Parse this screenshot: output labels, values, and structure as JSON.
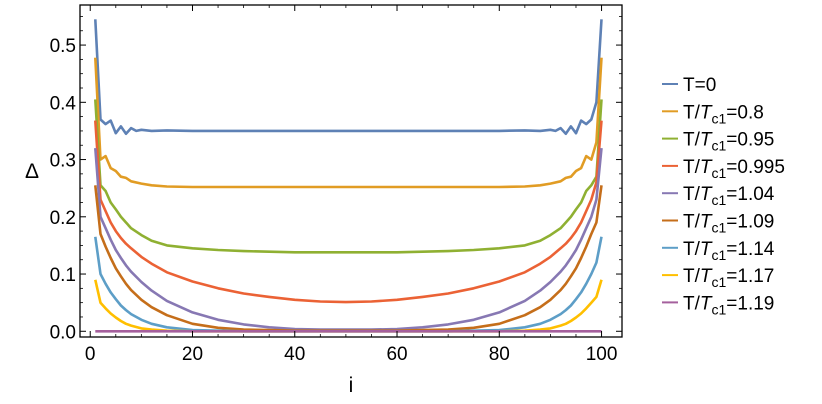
{
  "chart_data": {
    "type": "line",
    "xlabel": "i",
    "ylabel": "Δ",
    "xlim": [
      -2,
      104
    ],
    "ylim": [
      -0.01,
      0.57
    ],
    "x_ticks": [
      0,
      20,
      40,
      60,
      80,
      100
    ],
    "x_tick_labels": [
      "0",
      "20",
      "40",
      "60",
      "80",
      "100"
    ],
    "y_ticks": [
      0.0,
      0.1,
      0.2,
      0.3,
      0.4,
      0.5
    ],
    "y_tick_labels": [
      "0.0",
      "0.1",
      "0.2",
      "0.3",
      "0.4",
      "0.5"
    ],
    "grid": false,
    "legend_position": "right",
    "series": [
      {
        "name": "T=0",
        "legend": {
          "prefix": "T=0",
          "sym": "",
          "sub": "",
          "val": ""
        },
        "color": "#5e81b5",
        "x": [
          1,
          2,
          3,
          4,
          5,
          6,
          7,
          8,
          9,
          10,
          12,
          15,
          20,
          30,
          40,
          50,
          60,
          70,
          80,
          85,
          88,
          90,
          91,
          92,
          93,
          94,
          95,
          96,
          97,
          98,
          99,
          100
        ],
        "y": [
          0.545,
          0.37,
          0.362,
          0.368,
          0.346,
          0.358,
          0.345,
          0.355,
          0.35,
          0.352,
          0.35,
          0.351,
          0.35,
          0.35,
          0.35,
          0.35,
          0.35,
          0.35,
          0.35,
          0.351,
          0.35,
          0.352,
          0.35,
          0.355,
          0.345,
          0.358,
          0.346,
          0.368,
          0.362,
          0.37,
          0.4,
          0.545
        ]
      },
      {
        "name": "T/Tc1=0.8",
        "legend": {
          "prefix": "T/",
          "sym": "T",
          "sub": "c1",
          "val": "=0.8"
        },
        "color": "#e19c24",
        "x": [
          1,
          2,
          3,
          4,
          5,
          6,
          7,
          8,
          10,
          12,
          15,
          20,
          30,
          40,
          50,
          60,
          70,
          80,
          85,
          88,
          90,
          92,
          93,
          94,
          95,
          96,
          97,
          98,
          99,
          100
        ],
        "y": [
          0.478,
          0.3,
          0.306,
          0.285,
          0.28,
          0.27,
          0.268,
          0.262,
          0.258,
          0.255,
          0.253,
          0.252,
          0.252,
          0.252,
          0.252,
          0.252,
          0.252,
          0.252,
          0.253,
          0.255,
          0.258,
          0.262,
          0.268,
          0.27,
          0.28,
          0.285,
          0.306,
          0.3,
          0.33,
          0.478
        ]
      },
      {
        "name": "T/Tc1=0.95",
        "legend": {
          "prefix": "T/",
          "sym": "T",
          "sub": "c1",
          "val": "=0.95"
        },
        "color": "#8fb032",
        "x": [
          1,
          2,
          3,
          4,
          5,
          6,
          7,
          8,
          10,
          12,
          15,
          20,
          25,
          30,
          40,
          50,
          60,
          70,
          75,
          80,
          85,
          88,
          90,
          92,
          93,
          94,
          95,
          96,
          97,
          98,
          99,
          100
        ],
        "y": [
          0.405,
          0.255,
          0.245,
          0.225,
          0.213,
          0.2,
          0.19,
          0.18,
          0.168,
          0.158,
          0.15,
          0.145,
          0.142,
          0.14,
          0.138,
          0.138,
          0.138,
          0.14,
          0.142,
          0.145,
          0.15,
          0.158,
          0.168,
          0.18,
          0.19,
          0.2,
          0.213,
          0.225,
          0.245,
          0.255,
          0.27,
          0.405
        ]
      },
      {
        "name": "T/Tc1=0.995",
        "legend": {
          "prefix": "T/",
          "sym": "T",
          "sub": "c1",
          "val": "=0.995"
        },
        "color": "#eb6235",
        "x": [
          1,
          2,
          3,
          4,
          5,
          6,
          7,
          8,
          10,
          12,
          15,
          20,
          25,
          30,
          35,
          40,
          45,
          50,
          55,
          60,
          65,
          70,
          75,
          80,
          85,
          88,
          90,
          92,
          93,
          94,
          95,
          96,
          97,
          98,
          99,
          100
        ],
        "y": [
          0.368,
          0.23,
          0.21,
          0.19,
          0.175,
          0.163,
          0.153,
          0.145,
          0.13,
          0.118,
          0.103,
          0.087,
          0.075,
          0.066,
          0.06,
          0.055,
          0.052,
          0.051,
          0.052,
          0.055,
          0.06,
          0.066,
          0.075,
          0.087,
          0.103,
          0.118,
          0.13,
          0.145,
          0.153,
          0.163,
          0.175,
          0.19,
          0.21,
          0.23,
          0.26,
          0.368
        ]
      },
      {
        "name": "T/Tc1=1.04",
        "legend": {
          "prefix": "T/",
          "sym": "T",
          "sub": "c1",
          "val": "=1.04"
        },
        "color": "#8778b3",
        "x": [
          1,
          2,
          3,
          4,
          5,
          6,
          7,
          8,
          10,
          12,
          15,
          20,
          25,
          30,
          35,
          40,
          45,
          50,
          55,
          60,
          65,
          70,
          75,
          80,
          85,
          88,
          90,
          92,
          93,
          94,
          95,
          96,
          97,
          98,
          99,
          100
        ],
        "y": [
          0.32,
          0.2,
          0.18,
          0.16,
          0.142,
          0.128,
          0.115,
          0.104,
          0.086,
          0.071,
          0.053,
          0.033,
          0.02,
          0.012,
          0.007,
          0.004,
          0.003,
          0.003,
          0.003,
          0.004,
          0.007,
          0.012,
          0.02,
          0.033,
          0.053,
          0.071,
          0.086,
          0.104,
          0.115,
          0.128,
          0.142,
          0.16,
          0.18,
          0.2,
          0.23,
          0.32
        ]
      },
      {
        "name": "T/Tc1=1.09",
        "legend": {
          "prefix": "T/",
          "sym": "T",
          "sub": "c1",
          "val": "=1.09"
        },
        "color": "#c56e1a",
        "x": [
          1,
          2,
          3,
          4,
          5,
          6,
          7,
          8,
          10,
          12,
          15,
          20,
          25,
          30,
          35,
          40,
          50,
          60,
          65,
          70,
          75,
          80,
          85,
          88,
          90,
          92,
          93,
          94,
          95,
          96,
          97,
          98,
          99,
          100
        ],
        "y": [
          0.255,
          0.17,
          0.148,
          0.128,
          0.11,
          0.096,
          0.083,
          0.072,
          0.055,
          0.042,
          0.028,
          0.013,
          0.006,
          0.003,
          0.002,
          0.001,
          0.001,
          0.001,
          0.002,
          0.003,
          0.006,
          0.013,
          0.028,
          0.042,
          0.055,
          0.072,
          0.083,
          0.096,
          0.11,
          0.128,
          0.148,
          0.17,
          0.19,
          0.255
        ]
      },
      {
        "name": "T/Tc1=1.14",
        "legend": {
          "prefix": "T/",
          "sym": "T",
          "sub": "c1",
          "val": "=1.14"
        },
        "color": "#5d9ec7",
        "x": [
          1,
          2,
          3,
          4,
          5,
          6,
          7,
          8,
          10,
          12,
          15,
          20,
          25,
          30,
          40,
          50,
          60,
          70,
          75,
          80,
          85,
          88,
          90,
          92,
          93,
          94,
          95,
          96,
          97,
          98,
          99,
          100
        ],
        "y": [
          0.165,
          0.1,
          0.083,
          0.068,
          0.056,
          0.045,
          0.037,
          0.03,
          0.02,
          0.013,
          0.007,
          0.002,
          0.001,
          0.0,
          0.0,
          0.0,
          0.0,
          0.0,
          0.001,
          0.002,
          0.007,
          0.013,
          0.02,
          0.03,
          0.037,
          0.045,
          0.056,
          0.068,
          0.083,
          0.1,
          0.12,
          0.165
        ]
      },
      {
        "name": "T/Tc1=1.17",
        "legend": {
          "prefix": "T/",
          "sym": "T",
          "sub": "c1",
          "val": "=1.17"
        },
        "color": "#ffbf00",
        "x": [
          1,
          2,
          3,
          4,
          5,
          6,
          7,
          8,
          10,
          12,
          15,
          20,
          30,
          40,
          50,
          60,
          70,
          80,
          85,
          88,
          90,
          92,
          93,
          94,
          95,
          96,
          97,
          98,
          99,
          100
        ],
        "y": [
          0.09,
          0.05,
          0.04,
          0.031,
          0.024,
          0.018,
          0.013,
          0.01,
          0.005,
          0.003,
          0.001,
          0.0,
          0.0,
          0.0,
          0.0,
          0.0,
          0.0,
          0.0,
          0.001,
          0.003,
          0.005,
          0.01,
          0.013,
          0.018,
          0.024,
          0.031,
          0.04,
          0.05,
          0.06,
          0.09
        ]
      },
      {
        "name": "T/Tc1=1.19",
        "legend": {
          "prefix": "T/",
          "sym": "T",
          "sub": "c1",
          "val": "=1.19"
        },
        "color": "#a5609d",
        "x": [
          1,
          100
        ],
        "y": [
          0.0,
          0.0
        ]
      }
    ]
  }
}
